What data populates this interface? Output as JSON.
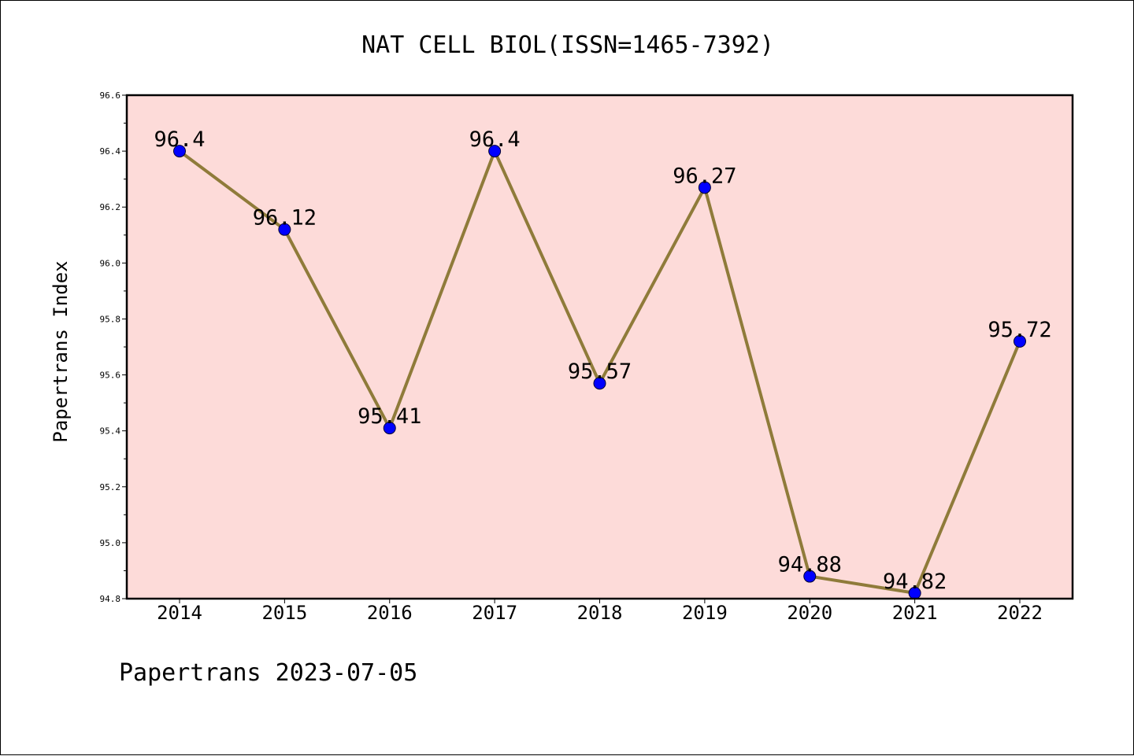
{
  "colors": {
    "plot_background": "#fddbd9",
    "line": "#8f7b3a",
    "marker": "#0000ff",
    "axis": "#000000"
  },
  "footer": "Papertrans 2023-07-05",
  "chart_data": {
    "type": "line",
    "title": "NAT CELL BIOL(ISSN=1465-7392)",
    "xlabel": "",
    "ylabel": "Papertrans Index",
    "categories": [
      "2014",
      "2015",
      "2016",
      "2017",
      "2018",
      "2019",
      "2020",
      "2021",
      "2022"
    ],
    "values": [
      96.4,
      96.12,
      95.41,
      96.4,
      95.57,
      96.27,
      94.88,
      94.82,
      95.72
    ],
    "data_labels": [
      "96.4",
      "96.12",
      "95.41",
      "96.4",
      "95.57",
      "96.27",
      "94.88",
      "94.82",
      "95.72"
    ],
    "ylim": [
      94.8,
      96.6
    ],
    "yticks": [
      "94.8",
      "95.0",
      "95.2",
      "95.4",
      "95.6",
      "95.8",
      "96.0",
      "96.2",
      "96.4",
      "96.6"
    ],
    "grid": false,
    "legend": "none"
  }
}
